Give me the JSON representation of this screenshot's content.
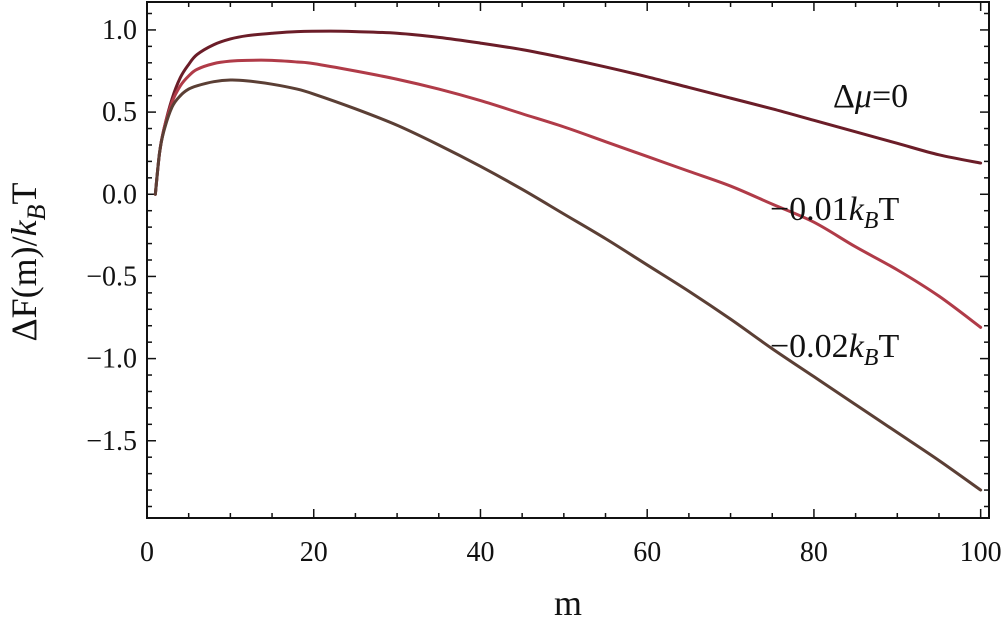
{
  "chart_data": {
    "type": "line",
    "title": "",
    "xlabel": "m",
    "ylabel_parts": {
      "a": "ΔF(m)/",
      "k": "k",
      "sub": "B",
      "t": "T"
    },
    "xlim": [
      0,
      101
    ],
    "ylim": [
      -1.97,
      1.17
    ],
    "x_major_ticks": [
      0,
      20,
      40,
      60,
      80,
      100
    ],
    "y_major_ticks": [
      -1.5,
      -1.0,
      -0.5,
      0.0,
      0.5,
      1.0
    ],
    "y_tick_labels": [
      "−1.5",
      "−1.0",
      "−0.5",
      "0.0",
      "0.5",
      "1.0"
    ],
    "grid": false,
    "series": [
      {
        "color": "#6b1d28",
        "label_parts": {
          "a": "Δ",
          "mu": "μ",
          "b": "=0"
        },
        "x": [
          1,
          1.5,
          2,
          3,
          4,
          5,
          6,
          8,
          10,
          12,
          15,
          18,
          22,
          25,
          30,
          35,
          40,
          45,
          50,
          55,
          60,
          65,
          70,
          75,
          80,
          85,
          90,
          95,
          100
        ],
        "y": [
          0.0,
          0.25,
          0.39,
          0.58,
          0.71,
          0.79,
          0.85,
          0.91,
          0.945,
          0.965,
          0.98,
          0.99,
          0.993,
          0.99,
          0.98,
          0.955,
          0.92,
          0.88,
          0.83,
          0.775,
          0.715,
          0.65,
          0.585,
          0.52,
          0.45,
          0.38,
          0.31,
          0.24,
          0.19
        ]
      },
      {
        "color": "#b03b48",
        "label_parts": {
          "a": "−0.01",
          "k": "k",
          "sub": "B",
          "t": "T"
        },
        "x": [
          1,
          1.5,
          2,
          3,
          4,
          5,
          6,
          8,
          10,
          12,
          15,
          18,
          20,
          25,
          30,
          35,
          40,
          45,
          50,
          55,
          60,
          65,
          70,
          75,
          80,
          85,
          90,
          95,
          100
        ],
        "y": [
          0.0,
          0.25,
          0.39,
          0.56,
          0.66,
          0.72,
          0.76,
          0.795,
          0.81,
          0.815,
          0.815,
          0.805,
          0.795,
          0.75,
          0.7,
          0.64,
          0.57,
          0.49,
          0.41,
          0.32,
          0.23,
          0.14,
          0.05,
          -0.06,
          -0.17,
          -0.32,
          -0.46,
          -0.62,
          -0.81
        ]
      },
      {
        "color": "#5b3f35",
        "label_parts": {
          "a": "−0.02",
          "k": "k",
          "sub": "B",
          "t": "T"
        },
        "x": [
          1,
          1.5,
          2,
          3,
          4,
          5,
          6,
          8,
          10,
          12,
          15,
          18,
          20,
          25,
          30,
          35,
          40,
          45,
          50,
          55,
          60,
          65,
          70,
          75,
          80,
          85,
          90,
          95,
          100
        ],
        "y": [
          0.0,
          0.25,
          0.38,
          0.53,
          0.6,
          0.64,
          0.66,
          0.685,
          0.695,
          0.69,
          0.67,
          0.64,
          0.61,
          0.52,
          0.42,
          0.3,
          0.17,
          0.03,
          -0.12,
          -0.27,
          -0.43,
          -0.59,
          -0.76,
          -0.94,
          -1.11,
          -1.28,
          -1.45,
          -1.62,
          -1.8
        ]
      }
    ]
  }
}
